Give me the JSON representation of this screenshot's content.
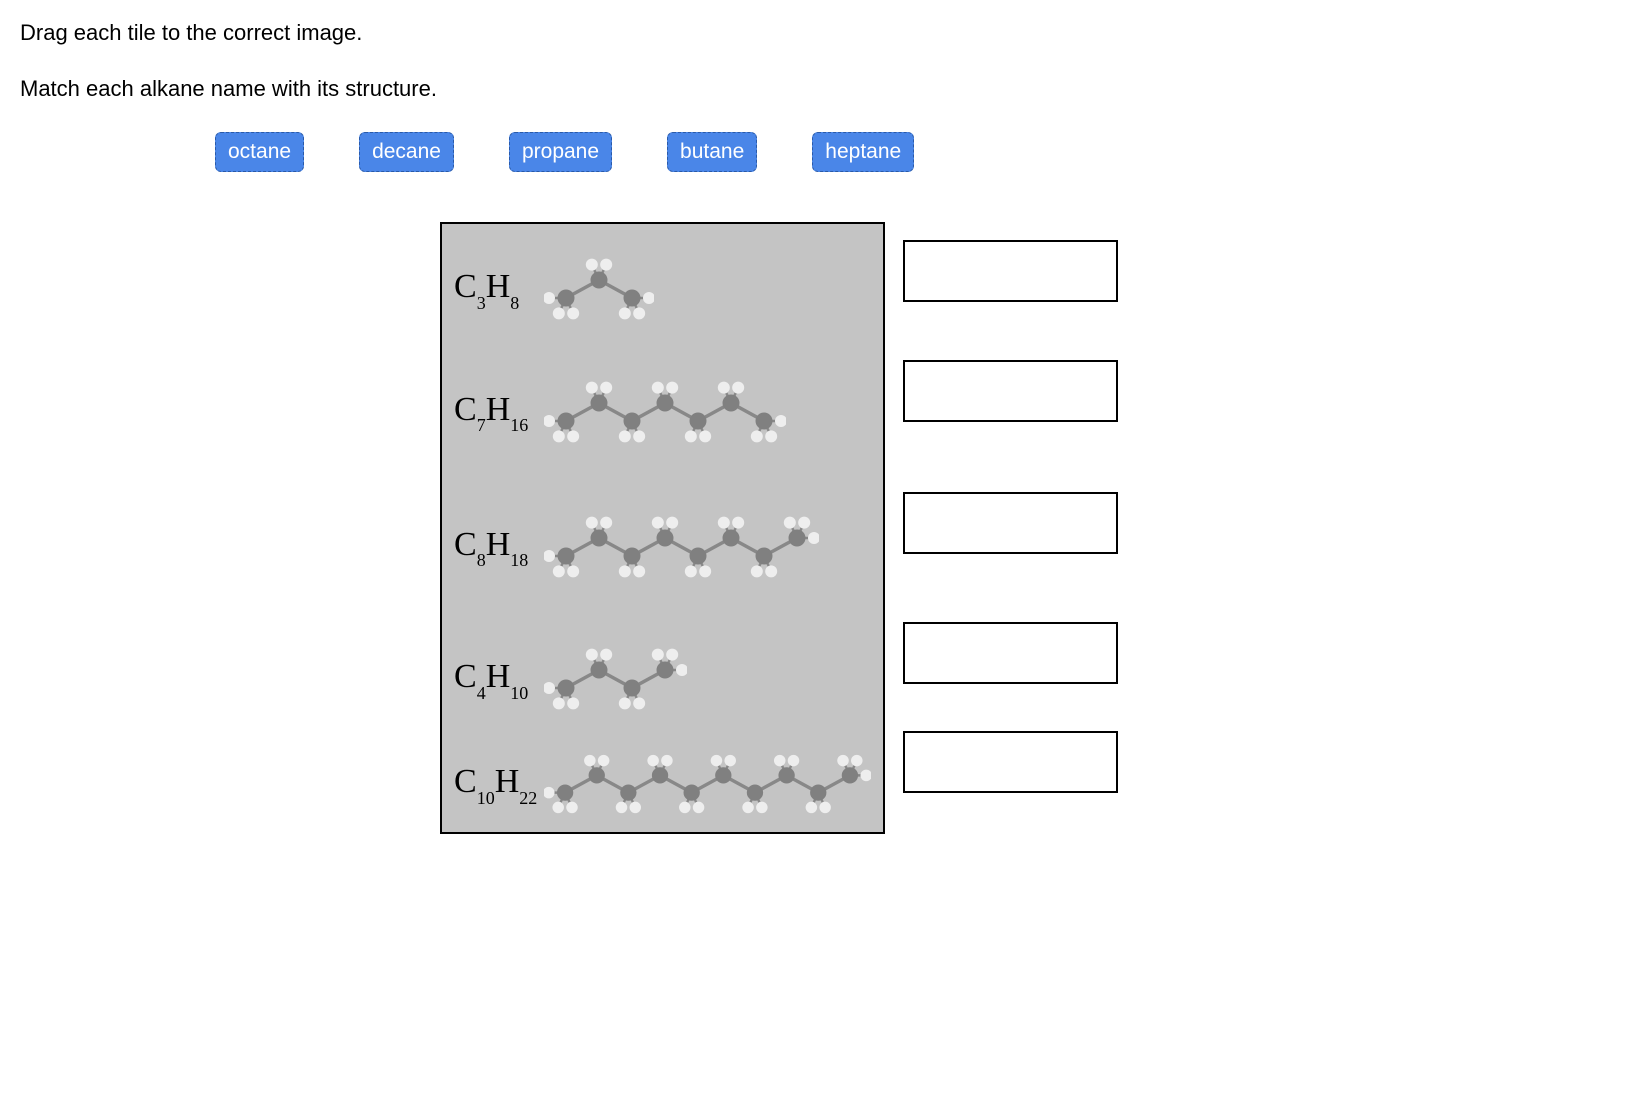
{
  "instructions": {
    "line1": "Drag each tile to the correct image.",
    "line2": "Match each alkane name with its structure."
  },
  "tiles": [
    {
      "label": "octane"
    },
    {
      "label": "decane"
    },
    {
      "label": "propane"
    },
    {
      "label": "butane"
    },
    {
      "label": "heptane"
    }
  ],
  "molecules": [
    {
      "c_sub": "3",
      "h_sub": "8",
      "carbons": 3
    },
    {
      "c_sub": "7",
      "h_sub": "16",
      "carbons": 7
    },
    {
      "c_sub": "8",
      "h_sub": "18",
      "carbons": 8
    },
    {
      "c_sub": "4",
      "h_sub": "10",
      "carbons": 4
    },
    {
      "c_sub": "10",
      "h_sub": "22",
      "carbons": 10
    }
  ],
  "style": {
    "tile_bg": "#4a86e8",
    "tile_text": "#ffffff",
    "panel_bg": "#c4c4c4",
    "carbon_color": "#808080",
    "hydrogen_color": "#eeeeee",
    "bond_color": "#888888",
    "carbon_radius": 8.5,
    "hydrogen_radius": 6,
    "carbon_spacing": 33,
    "zigzag_amplitude": 9
  }
}
